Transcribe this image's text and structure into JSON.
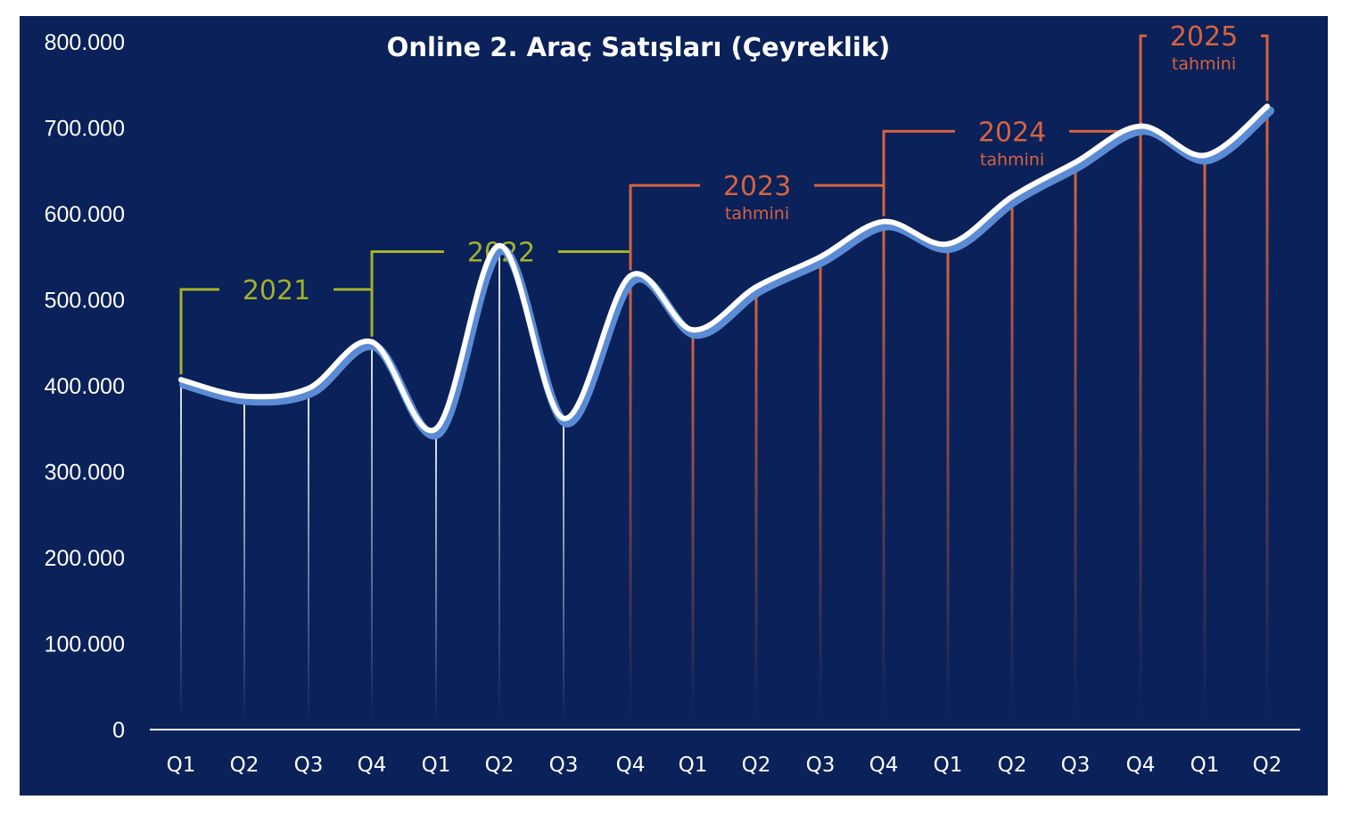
{
  "chart_data": {
    "type": "line",
    "title": "Online 2. Araç Satışları (Çeyreklik)",
    "xlabel": "",
    "ylabel": "",
    "ylim": [
      0,
      800000
    ],
    "yticks": [
      "0",
      "100.000",
      "200.000",
      "300.000",
      "400.000",
      "500.000",
      "600.000",
      "700.000",
      "800.000"
    ],
    "categories": [
      "Q1",
      "Q2",
      "Q3",
      "Q4",
      "Q1",
      "Q2",
      "Q3",
      "Q4",
      "Q1",
      "Q2",
      "Q3",
      "Q4",
      "Q1",
      "Q2",
      "Q3",
      "Q4",
      "Q1",
      "Q2"
    ],
    "values": [
      407000,
      388000,
      397000,
      451000,
      350000,
      563000,
      362000,
      528000,
      465000,
      515000,
      550000,
      591000,
      565000,
      620000,
      660000,
      702000,
      668000,
      725000
    ],
    "groups": [
      {
        "year": "2021",
        "subtitle": "",
        "start": 0,
        "end": 3,
        "kind": "actual"
      },
      {
        "year": "2022",
        "subtitle": "",
        "start": 3,
        "end": 7,
        "kind": "actual"
      },
      {
        "year": "2023",
        "subtitle": "tahmini",
        "start": 7,
        "end": 11,
        "kind": "forecast"
      },
      {
        "year": "2024",
        "subtitle": "tahmini",
        "start": 11,
        "end": 15,
        "kind": "forecast"
      },
      {
        "year": "2025",
        "subtitle": "tahmini",
        "start": 15,
        "end": 17,
        "kind": "forecast"
      }
    ],
    "forecast_from_index": 7,
    "grid": false,
    "legend": "none",
    "colors": {
      "background": "#0a2159",
      "line": "#ffffff",
      "line_shadow": "#5b8bd4",
      "actual_drop": "#ffffff",
      "forecast_drop": "#d6633f",
      "actual_bracket": "#a3b12a",
      "forecast_bracket": "#d6633f"
    }
  }
}
